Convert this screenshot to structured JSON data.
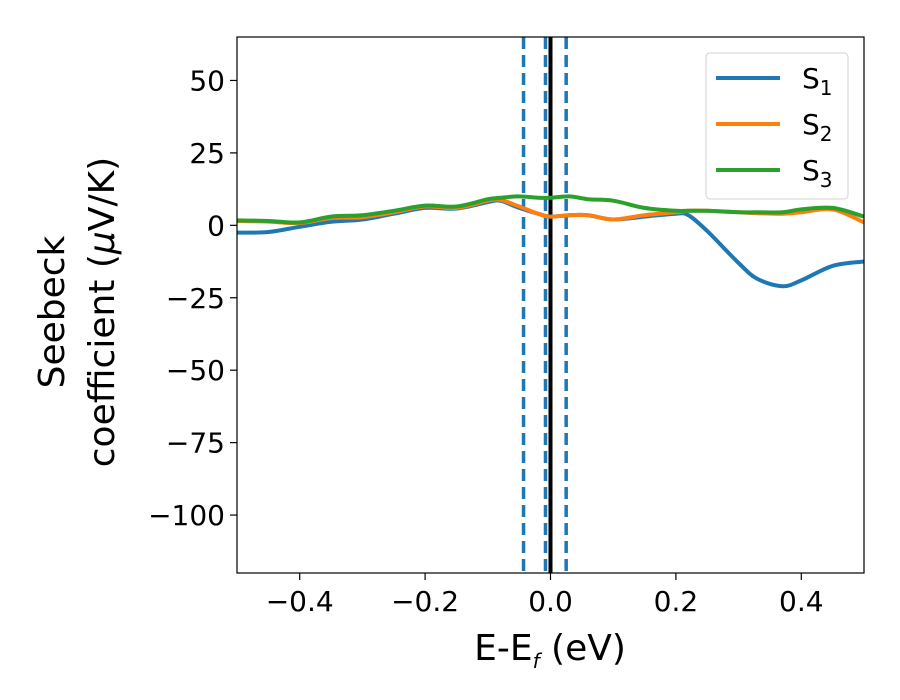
{
  "chart_data": {
    "type": "line",
    "xlabel": {
      "main": "E-E",
      "sub": "f",
      "rest": " (eV)"
    },
    "ylabel": {
      "line1": "Seebeck",
      "line2_text": "coefficient  (",
      "line2_mu": "μ",
      "line2_rest": "V/K)"
    },
    "xlim": [
      -0.5,
      0.5
    ],
    "ylim": [
      -120,
      65
    ],
    "xticks": [
      -0.4,
      -0.2,
      0.0,
      0.2,
      0.4
    ],
    "xtick_labels": [
      "−0.4",
      "−0.2",
      "0.0",
      "0.2",
      "0.4"
    ],
    "yticks": [
      50,
      25,
      0,
      -25,
      -50,
      -75,
      -100
    ],
    "ytick_labels": [
      "50",
      "25",
      "0",
      "−25",
      "−50",
      "−75",
      "−100"
    ],
    "grid": false,
    "legend_placement": "top-right",
    "vlines": [
      {
        "x": 0.0,
        "style": "solid",
        "color": "#000000"
      },
      {
        "x": -0.043,
        "style": "dashed",
        "color": "#1f77b4"
      },
      {
        "x": -0.008,
        "style": "dashed",
        "color": "#1f77b4"
      },
      {
        "x": 0.025,
        "style": "dashed",
        "color": "#1f77b4"
      }
    ],
    "x": [
      -0.5,
      -0.45,
      -0.4,
      -0.35,
      -0.3,
      -0.25,
      -0.2,
      -0.15,
      -0.1,
      -0.08,
      -0.05,
      -0.02,
      0.0,
      0.03,
      0.06,
      0.1,
      0.15,
      0.2,
      0.22,
      0.25,
      0.3,
      0.33,
      0.37,
      0.4,
      0.45,
      0.5
    ],
    "series": [
      {
        "name": "S",
        "sub": "1",
        "color": "#1f77b4",
        "values": [
          -2.5,
          -2.3,
          -0.5,
          1.2,
          2.0,
          4.0,
          6.0,
          5.8,
          8.0,
          8.5,
          6.0,
          4.0,
          3.0,
          3.5,
          3.5,
          2.0,
          3.0,
          4.0,
          3.5,
          -2.0,
          -13.0,
          -18.5,
          -21.0,
          -19.0,
          -14.0,
          -12.5
        ]
      },
      {
        "name": "S",
        "sub": "2",
        "color": "#ff7f0e",
        "values": [
          1.5,
          1.3,
          0.8,
          2.5,
          2.8,
          4.5,
          6.5,
          6.0,
          8.5,
          8.8,
          6.5,
          4.0,
          3.0,
          3.5,
          3.5,
          2.0,
          3.5,
          4.5,
          5.0,
          5.0,
          4.5,
          4.2,
          4.0,
          4.5,
          5.5,
          1.0
        ]
      },
      {
        "name": "S",
        "sub": "3",
        "color": "#2ca02c",
        "values": [
          1.7,
          1.5,
          1.0,
          3.0,
          3.5,
          5.0,
          6.8,
          6.5,
          9.0,
          9.5,
          10.0,
          9.5,
          9.5,
          10.0,
          9.0,
          8.5,
          6.0,
          5.0,
          5.0,
          5.0,
          4.5,
          4.5,
          4.5,
          5.5,
          6.0,
          3.0
        ]
      }
    ]
  }
}
